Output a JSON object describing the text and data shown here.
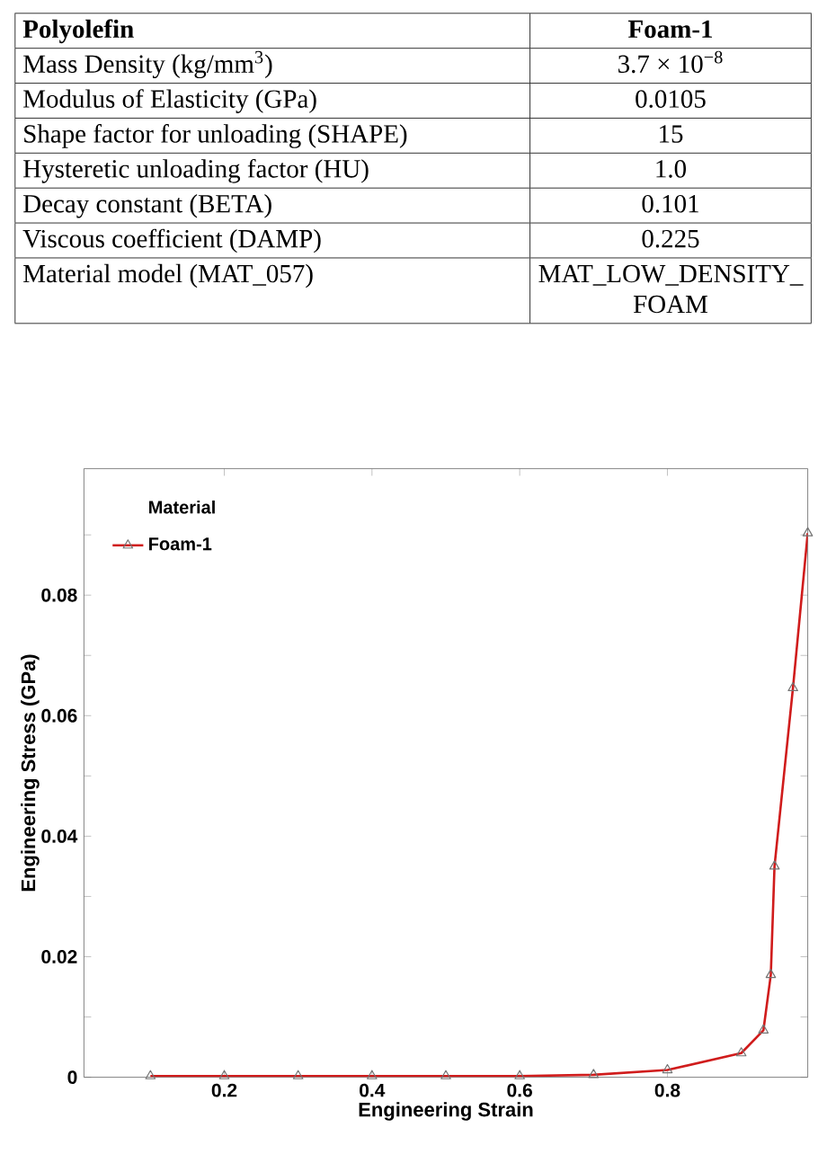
{
  "chart_data": [
    {
      "type": "other",
      "annotations": [
        "Polyolefin",
        "Foam-1",
        "Mass Density (kg/mm$^{3}$)",
        "3.7 × 10$^{−8}$",
        "Modulus of Elasticity (GPa)",
        "0.0105",
        "Shape factor for unloading (SHAPE)",
        "15",
        "Hysteretic unloading factor (HU)",
        "1.0",
        "Decay constant (BETA)",
        "0.101",
        "Viscous coefficient (DAMP)",
        "0.225",
        "Material model (MAT_057)",
        "MAT_LOW_DENSITY_FOAM"
      ]
    },
    {
      "type": "line",
      "xlabel": "Engineering Strain",
      "ylabel": "Engineering Stress (GPa)",
      "legend_title": "Material",
      "legend": "top left",
      "marker": "triangle",
      "line_style": "solid",
      "xlim": [
        0.01,
        0.99
      ],
      "ylim": [
        0,
        0.101
      ],
      "xticks": [
        0.2,
        0.4,
        0.6,
        0.8
      ],
      "yticks": [
        0,
        {
          "value": 0.01,
          "label": null
        },
        0.02,
        {
          "value": 0.03,
          "label": null
        },
        0.04,
        {
          "value": 0.05,
          "label": null
        },
        0.06,
        {
          "value": 0.07,
          "label": null
        },
        0.08,
        {
          "value": 0.09,
          "label": null
        }
      ],
      "series": [
        {
          "name": "Foam-1",
          "color": "#d01c1c",
          "x": [
            0.1,
            0.2,
            0.3,
            0.4,
            0.5,
            0.6,
            0.7,
            0.8,
            0.9,
            0.93,
            0.94,
            0.945,
            0.97,
            0.99
          ],
          "values": [
            0.0002,
            0.0002,
            0.0002,
            0.0002,
            0.0002,
            0.0002,
            0.0004,
            0.0012,
            0.004,
            0.0078,
            0.017,
            0.035,
            0.0646,
            0.0903
          ]
        }
      ]
    }
  ]
}
